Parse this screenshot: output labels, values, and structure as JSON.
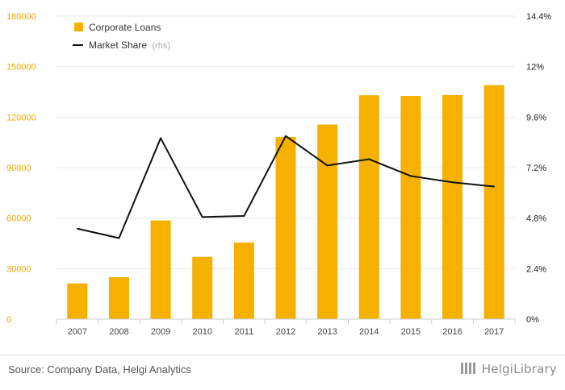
{
  "chart_data": {
    "type": "bar",
    "categories": [
      "2007",
      "2008",
      "2009",
      "2010",
      "2011",
      "2012",
      "2013",
      "2014",
      "2015",
      "2016",
      "2017"
    ],
    "series": [
      {
        "name": "Corporate Loans",
        "type": "bar",
        "axis": "left",
        "color": "#f5b000",
        "values": [
          21200,
          24900,
          58600,
          37000,
          45500,
          108200,
          115600,
          133000,
          132600,
          133100,
          139000
        ]
      },
      {
        "name": "Market Share",
        "name_suffix": "(rhs)",
        "type": "line",
        "axis": "right",
        "color": "#111111",
        "values": [
          4.3,
          3.85,
          8.6,
          4.85,
          4.9,
          8.7,
          7.3,
          7.6,
          6.8,
          6.5,
          6.3
        ]
      }
    ],
    "left_axis": {
      "ylim": [
        0,
        180000
      ],
      "ticks": [
        "0",
        "30000",
        "60000",
        "90000",
        "120000",
        "150000",
        "180000"
      ],
      "tick_values": [
        0,
        30000,
        60000,
        90000,
        120000,
        150000,
        180000
      ],
      "tick_color": "#f0a800"
    },
    "right_axis": {
      "ylim": [
        0,
        14.4
      ],
      "ticks": [
        "0%",
        "2.4%",
        "4.8%",
        "7.2%",
        "9.6%",
        "12%",
        "14.4%"
      ],
      "tick_values": [
        0,
        2.4,
        4.8,
        7.2,
        9.6,
        12,
        14.4
      ]
    },
    "grid": true,
    "legend_position": "top-left"
  },
  "footer": {
    "source": "Source: Company Data, Helgi Analytics",
    "logo_text": "HelgiLibrary"
  }
}
